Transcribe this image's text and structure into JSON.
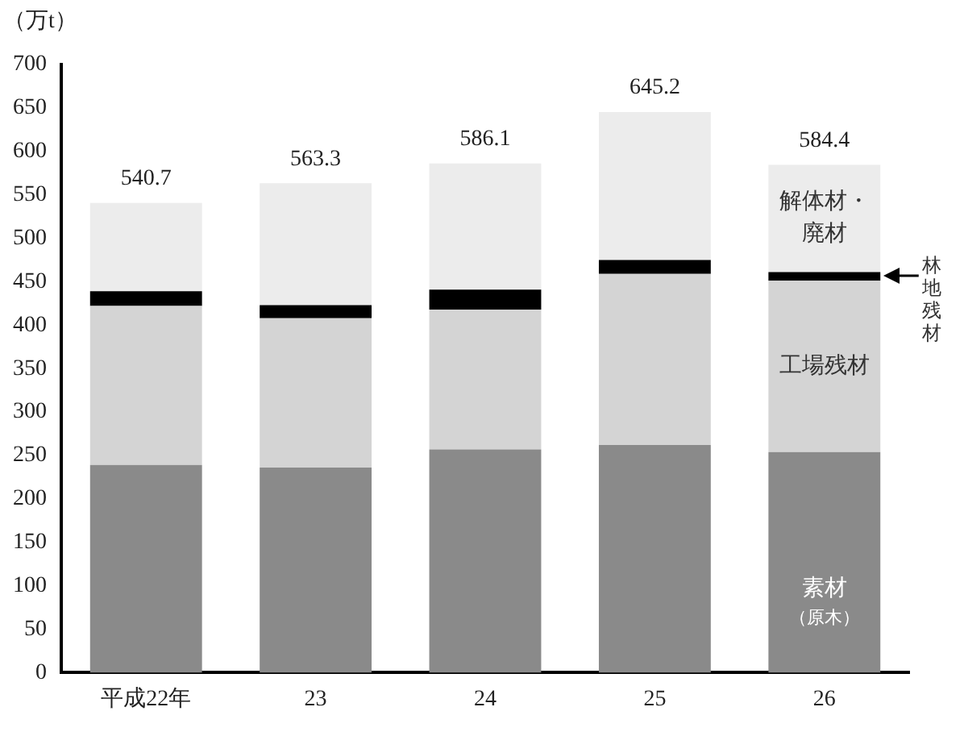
{
  "chart_data": {
    "type": "bar",
    "stacked": true,
    "ylabel": "（万t）",
    "categories": [
      "平成22年",
      "23",
      "24",
      "25",
      "26"
    ],
    "series": [
      {
        "name": "素材（原木）",
        "color": "#8a8a8a",
        "values": [
          239,
          236,
          257,
          262,
          254
        ]
      },
      {
        "name": "工場残材",
        "color": "#d4d4d4",
        "values": [
          183,
          172,
          161,
          197,
          197
        ]
      },
      {
        "name": "林地残材",
        "color": "#000000",
        "values": [
          17,
          15,
          23,
          16,
          10
        ]
      },
      {
        "name": "解体材・廃材",
        "color": "#ececec",
        "values": [
          101.7,
          140.3,
          145.1,
          170.2,
          123.4
        ]
      }
    ],
    "totals": [
      "540.7",
      "563.3",
      "586.1",
      "645.2",
      "584.4"
    ],
    "ylim": [
      0,
      700
    ],
    "yticks": [
      0,
      50,
      100,
      150,
      200,
      250,
      300,
      350,
      400,
      450,
      500,
      550,
      600,
      650,
      700
    ],
    "grid": false,
    "legend": "right"
  }
}
